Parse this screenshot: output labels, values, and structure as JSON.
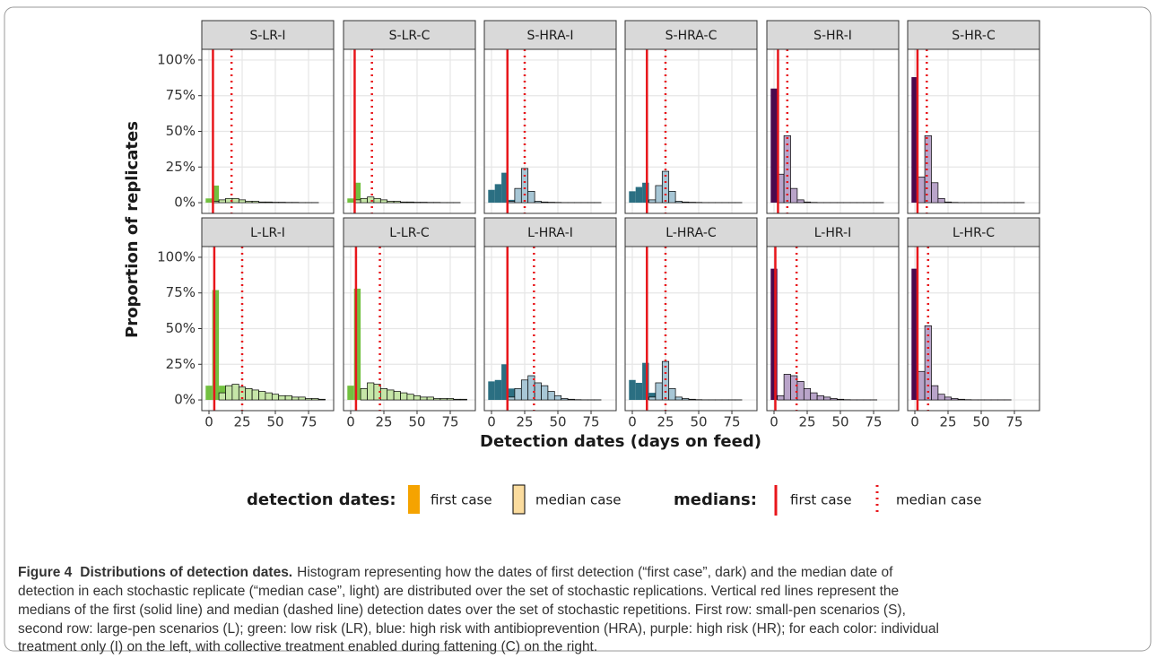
{
  "chart_data": [
    {
      "type": "histogram",
      "title": "S-LR-I",
      "bins": [
        -2.5,
        2.5,
        7.5,
        12.5,
        17.5,
        22.5,
        27.5,
        32.5,
        37.5,
        42.5,
        47.5,
        52.5,
        57.5,
        62.5,
        67.5,
        72.5,
        77.5,
        82.5,
        87.5
      ],
      "series": [
        {
          "color": "#72c040",
          "values": [
            3,
            12,
            0,
            0,
            0,
            0,
            0,
            0,
            0,
            0,
            0,
            0,
            0,
            0,
            0,
            0,
            0,
            0
          ]
        },
        {
          "color": "#c6e6a8",
          "values": [
            0,
            1,
            2,
            3,
            3,
            2,
            1,
            1,
            0.5,
            0.5,
            0.3,
            0.3,
            0.2,
            0.2,
            0.1,
            0.1,
            0.1,
            0
          ]
        }
      ],
      "first_case_median": 3,
      "median_case_median": 17
    },
    {
      "type": "histogram",
      "title": "S-LR-C",
      "bins": [
        -2.5,
        2.5,
        7.5,
        12.5,
        17.5,
        22.5,
        27.5,
        32.5,
        37.5,
        42.5,
        47.5,
        52.5,
        57.5,
        62.5,
        67.5,
        72.5,
        77.5,
        82.5,
        87.5
      ],
      "series": [
        {
          "color": "#72c040",
          "values": [
            3,
            14,
            0,
            0,
            0,
            0,
            0,
            0,
            0,
            0,
            0,
            0,
            0,
            0,
            0,
            0,
            0,
            0
          ]
        },
        {
          "color": "#c6e6a8",
          "values": [
            0,
            2,
            3,
            4,
            3,
            2,
            1,
            1,
            0.5,
            0.5,
            0.3,
            0.3,
            0.2,
            0.2,
            0.1,
            0.1,
            0.1,
            0
          ]
        }
      ],
      "first_case_median": 3,
      "median_case_median": 16
    },
    {
      "type": "histogram",
      "title": "S-HRA-I",
      "bins": [
        -2.5,
        2.5,
        7.5,
        12.5,
        17.5,
        22.5,
        27.5,
        32.5,
        37.5,
        42.5,
        47.5,
        52.5,
        57.5,
        62.5,
        67.5,
        72.5,
        77.5,
        82.5,
        87.5
      ],
      "series": [
        {
          "color": "#2b6f82",
          "values": [
            9,
            13,
            21,
            2,
            0,
            0,
            0,
            0,
            0,
            0,
            0,
            0,
            0,
            0,
            0,
            0,
            0,
            0
          ]
        },
        {
          "color": "#a7c6d5",
          "values": [
            0,
            0,
            0,
            1,
            10,
            24,
            8,
            1,
            0.5,
            0.3,
            0.2,
            0.1,
            0.1,
            0.1,
            0.1,
            0.1,
            0.1,
            0
          ]
        }
      ],
      "first_case_median": 12,
      "median_case_median": 25
    },
    {
      "type": "histogram",
      "title": "S-HRA-C",
      "bins": [
        -2.5,
        2.5,
        7.5,
        12.5,
        17.5,
        22.5,
        27.5,
        32.5,
        37.5,
        42.5,
        47.5,
        52.5,
        57.5,
        62.5,
        67.5,
        72.5,
        77.5,
        82.5,
        87.5
      ],
      "series": [
        {
          "color": "#2b6f82",
          "values": [
            8,
            11,
            14,
            2,
            0,
            0,
            0,
            0,
            0,
            0,
            0,
            0,
            0,
            0,
            0,
            0,
            0,
            0
          ]
        },
        {
          "color": "#a7c6d5",
          "values": [
            0,
            0,
            0,
            2,
            12,
            22,
            8,
            1,
            0.5,
            0.3,
            0.2,
            0.1,
            0.1,
            0.1,
            0.1,
            0.1,
            0.1,
            0
          ]
        }
      ],
      "first_case_median": 11,
      "median_case_median": 25
    },
    {
      "type": "histogram",
      "title": "S-HR-I",
      "bins": [
        -2.5,
        2.5,
        7.5,
        12.5,
        17.5,
        22.5,
        27.5,
        32.5,
        37.5,
        42.5,
        47.5,
        52.5,
        57.5,
        62.5,
        67.5,
        72.5,
        77.5,
        82.5,
        87.5
      ],
      "series": [
        {
          "color": "#4a0a4e",
          "values": [
            80,
            3,
            0,
            0,
            0,
            0,
            0,
            0,
            0,
            0,
            0,
            0,
            0,
            0,
            0,
            0,
            0,
            0
          ]
        },
        {
          "color": "#b9a4c9",
          "values": [
            0,
            20,
            47,
            10,
            2,
            0.5,
            0.2,
            0.1,
            0.1,
            0.1,
            0.1,
            0.1,
            0.1,
            0.1,
            0.1,
            0.1,
            0.1,
            0
          ]
        }
      ],
      "first_case_median": 3,
      "median_case_median": 10
    },
    {
      "type": "histogram",
      "title": "S-HR-C",
      "bins": [
        -2.5,
        2.5,
        7.5,
        12.5,
        17.5,
        22.5,
        27.5,
        32.5,
        37.5,
        42.5,
        47.5,
        52.5,
        57.5,
        62.5,
        67.5,
        72.5,
        77.5,
        82.5,
        87.5
      ],
      "series": [
        {
          "color": "#4a0a4e",
          "values": [
            88,
            2,
            0,
            0,
            0,
            0,
            0,
            0,
            0,
            0,
            0,
            0,
            0,
            0,
            0,
            0,
            0,
            0
          ]
        },
        {
          "color": "#b9a4c9",
          "values": [
            0,
            18,
            47,
            14,
            3,
            0.5,
            0.2,
            0.1,
            0.1,
            0.1,
            0.1,
            0.1,
            0.1,
            0.1,
            0.1,
            0.1,
            0.1,
            0
          ]
        }
      ],
      "first_case_median": 2,
      "median_case_median": 9
    },
    {
      "type": "histogram",
      "title": "L-LR-I",
      "bins": [
        -2.5,
        2.5,
        7.5,
        12.5,
        17.5,
        22.5,
        27.5,
        32.5,
        37.5,
        42.5,
        47.5,
        52.5,
        57.5,
        62.5,
        67.5,
        72.5,
        77.5,
        82.5,
        87.5
      ],
      "series": [
        {
          "color": "#72c040",
          "values": [
            10,
            77,
            10,
            0,
            0,
            0,
            0,
            0,
            0,
            0,
            0,
            0,
            0,
            0,
            0,
            0,
            0,
            0
          ]
        },
        {
          "color": "#c6e6a8",
          "values": [
            0,
            0,
            5,
            10,
            11,
            9,
            8,
            7,
            6,
            5,
            4,
            3,
            3,
            2,
            2,
            1,
            1,
            0.5
          ]
        }
      ],
      "first_case_median": 4,
      "median_case_median": 25
    },
    {
      "type": "histogram",
      "title": "L-LR-C",
      "bins": [
        -2.5,
        2.5,
        7.5,
        12.5,
        17.5,
        22.5,
        27.5,
        32.5,
        37.5,
        42.5,
        47.5,
        52.5,
        57.5,
        62.5,
        67.5,
        72.5,
        77.5,
        82.5,
        87.5
      ],
      "series": [
        {
          "color": "#72c040",
          "values": [
            10,
            78,
            8,
            0,
            0,
            0,
            0,
            0,
            0,
            0,
            0,
            0,
            0,
            0,
            0,
            0,
            0,
            0
          ]
        },
        {
          "color": "#c6e6a8",
          "values": [
            0,
            0,
            8,
            12,
            11,
            8,
            7,
            6,
            5,
            4,
            3,
            2,
            2,
            1,
            1,
            1,
            0.5,
            0.5
          ]
        }
      ],
      "first_case_median": 4,
      "median_case_median": 22
    },
    {
      "type": "histogram",
      "title": "L-HRA-I",
      "bins": [
        -2.5,
        2.5,
        7.5,
        12.5,
        17.5,
        22.5,
        27.5,
        32.5,
        37.5,
        42.5,
        47.5,
        52.5,
        57.5,
        62.5,
        67.5,
        72.5,
        77.5,
        82.5,
        87.5
      ],
      "series": [
        {
          "color": "#2b6f82",
          "values": [
            13,
            14,
            25,
            8,
            0,
            0,
            0,
            0,
            0,
            0,
            0,
            0,
            0,
            0,
            0,
            0,
            0,
            0
          ]
        },
        {
          "color": "#a7c6d5",
          "values": [
            0,
            0,
            0,
            2,
            8,
            14,
            17,
            12,
            10,
            6,
            3,
            1,
            0.5,
            0.2,
            0.1,
            0.1,
            0.1,
            0
          ]
        }
      ],
      "first_case_median": 12,
      "median_case_median": 32
    },
    {
      "type": "histogram",
      "title": "L-HRA-C",
      "bins": [
        -2.5,
        2.5,
        7.5,
        12.5,
        17.5,
        22.5,
        27.5,
        32.5,
        37.5,
        42.5,
        47.5,
        52.5,
        57.5,
        62.5,
        67.5,
        72.5,
        77.5,
        82.5,
        87.5
      ],
      "series": [
        {
          "color": "#2b6f82",
          "values": [
            14,
            12,
            26,
            5,
            0,
            0,
            0,
            0,
            0,
            0,
            0,
            0,
            0,
            0,
            0,
            0,
            0,
            0
          ]
        },
        {
          "color": "#a7c6d5",
          "values": [
            0,
            0,
            0,
            2,
            12,
            27,
            8,
            2,
            1,
            0.5,
            0.2,
            0.1,
            0.1,
            0.1,
            0.1,
            0.1,
            0.1,
            0
          ]
        }
      ],
      "first_case_median": 11,
      "median_case_median": 25
    },
    {
      "type": "histogram",
      "title": "L-HR-I",
      "bins": [
        -2.5,
        2.5,
        7.5,
        12.5,
        17.5,
        22.5,
        27.5,
        32.5,
        37.5,
        42.5,
        47.5,
        52.5,
        57.5,
        62.5,
        67.5,
        72.5,
        77.5,
        82.5,
        87.5
      ],
      "series": [
        {
          "color": "#4a0a4e",
          "values": [
            92,
            2,
            0,
            0,
            0,
            0,
            0,
            0,
            0,
            0,
            0,
            0,
            0,
            0,
            0,
            0,
            0,
            0
          ]
        },
        {
          "color": "#b9a4c9",
          "values": [
            0,
            3,
            18,
            17,
            13,
            8,
            5,
            3,
            2,
            1,
            0.5,
            0.2,
            0.1,
            0.1,
            0.1,
            0.1,
            0,
            0
          ]
        }
      ],
      "first_case_median": 1,
      "median_case_median": 17
    },
    {
      "type": "histogram",
      "title": "L-HR-C",
      "bins": [
        -2.5,
        2.5,
        7.5,
        12.5,
        17.5,
        22.5,
        27.5,
        32.5,
        37.5,
        42.5,
        47.5,
        52.5,
        57.5,
        62.5,
        67.5,
        72.5,
        77.5,
        82.5,
        87.5
      ],
      "series": [
        {
          "color": "#4a0a4e",
          "values": [
            92,
            2,
            0,
            0,
            0,
            0,
            0,
            0,
            0,
            0,
            0,
            0,
            0,
            0,
            0,
            0,
            0,
            0
          ]
        },
        {
          "color": "#b9a4c9",
          "values": [
            0,
            20,
            52,
            10,
            4,
            2,
            1,
            0.5,
            0.2,
            0.1,
            0.1,
            0.1,
            0.1,
            0.1,
            0.1,
            0,
            0,
            0
          ]
        }
      ],
      "first_case_median": 2,
      "median_case_median": 10
    }
  ],
  "x_axis": {
    "label": "Detection dates (days on feed)",
    "xlim": [
      -5.4,
      93.9
    ],
    "xticks": [
      0,
      25,
      50,
      75
    ]
  },
  "y_axis": {
    "label": "Proportion of replicates",
    "ylim": [
      -7.5,
      107.5
    ],
    "yticks": [
      {
        "value": 0,
        "label": "0%"
      },
      {
        "value": 25,
        "label": "25%"
      },
      {
        "value": 50,
        "label": "50%"
      },
      {
        "value": 75,
        "label": "75%"
      },
      {
        "value": 100,
        "label": "100%"
      }
    ],
    "grid": true
  },
  "median_line_color": "#e8161b",
  "legend": {
    "bars": {
      "title": "detection dates:",
      "items": [
        {
          "name": "first case",
          "color": "#f5a300"
        },
        {
          "name": "median case",
          "color": "#fbdc9e"
        }
      ]
    },
    "lines": {
      "title": "medians:",
      "items": [
        {
          "name": "first case",
          "style": "solid"
        },
        {
          "name": "median case",
          "style": "dotted"
        }
      ]
    }
  },
  "caption": {
    "label": "Figure 4",
    "title": "Distributions of detection dates.",
    "lines": [
      "Histogram representing how the dates of first detection (“first case”, dark) and the median date of",
      "detection in each stochastic replicate (“median case”, light) are distributed over the set of stochastic replications. Vertical red lines represent the",
      "medians of the first (solid line) and median (dashed line) detection dates over the set of stochastic repetitions. First row: small-pen scenarios (S),",
      "second row: large-pen scenarios (L); green: low risk (LR), blue: high risk with antibioprevention (HRA), purple: high risk (HR); for each color: individual",
      "treatment only (I) on the left, with collective treatment enabled during fattening (C) on the right."
    ]
  }
}
